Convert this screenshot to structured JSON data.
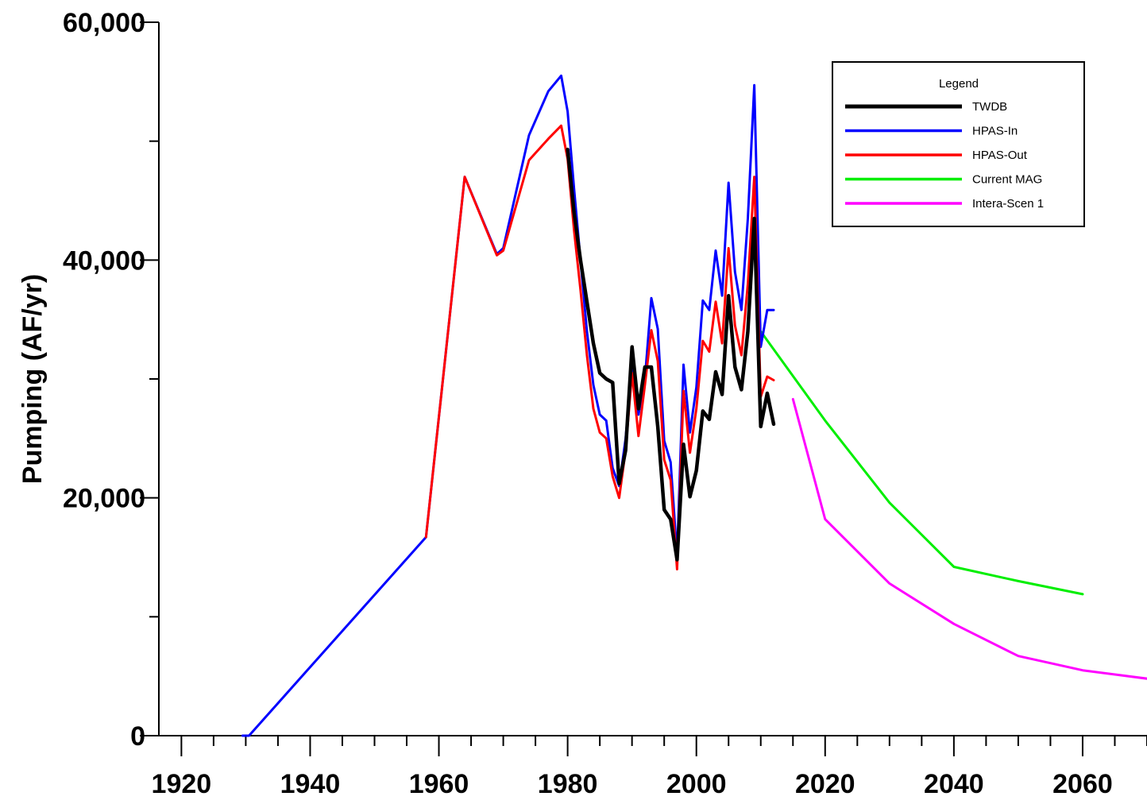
{
  "chart_data": {
    "type": "line",
    "title": "",
    "xlabel": "",
    "ylabel": "Pumping (AF/yr)",
    "xlim": [
      1916.5,
      2070
    ],
    "ylim": [
      0,
      60000
    ],
    "x_ticks": [
      1920,
      1940,
      1960,
      1980,
      2000,
      2020,
      2040,
      2060
    ],
    "x_tick_labels": [
      "1920",
      "1940",
      "1960",
      "1980",
      "2000",
      "2020",
      "2040",
      "2060"
    ],
    "y_ticks": [
      0,
      20000,
      40000,
      60000
    ],
    "y_tick_labels": [
      "0",
      "20,000",
      "40,000",
      "60,000"
    ],
    "y_minor_ticks": [
      10000,
      30000,
      50000
    ],
    "grid": false,
    "legend": {
      "title": "Legend",
      "position": "top-right"
    },
    "series": [
      {
        "name": "TWDB",
        "color": "#000000",
        "width": 4.5,
        "points": [
          [
            1980,
            49300
          ],
          [
            1981,
            44000
          ],
          [
            1982,
            40000
          ],
          [
            1983,
            36500
          ],
          [
            1984,
            33000
          ],
          [
            1985,
            30500
          ],
          [
            1986,
            30000
          ],
          [
            1987,
            29700
          ],
          [
            1988,
            21200
          ],
          [
            1989,
            24000
          ],
          [
            1990,
            32700
          ],
          [
            1991,
            27500
          ],
          [
            1992,
            31000
          ],
          [
            1993,
            31000
          ],
          [
            1994,
            26000
          ],
          [
            1995,
            19000
          ],
          [
            1996,
            18200
          ],
          [
            1997,
            14800
          ],
          [
            1998,
            24500
          ],
          [
            1999,
            20100
          ],
          [
            2000,
            22300
          ],
          [
            2001,
            27300
          ],
          [
            2002,
            26600
          ],
          [
            2003,
            30600
          ],
          [
            2004,
            28700
          ],
          [
            2005,
            37000
          ],
          [
            2006,
            31000
          ],
          [
            2007,
            29100
          ],
          [
            2008,
            34000
          ],
          [
            2009,
            43500
          ],
          [
            2010,
            26000
          ],
          [
            2011,
            28800
          ],
          [
            2012,
            26200
          ]
        ]
      },
      {
        "name": "HPAS-In",
        "color": "#0000ff",
        "width": 3,
        "points": [
          [
            1929.5,
            0
          ],
          [
            1930.5,
            0
          ],
          [
            1958,
            16700
          ],
          [
            1964,
            47000
          ],
          [
            1969,
            40500
          ],
          [
            1970,
            41000
          ],
          [
            1974,
            50500
          ],
          [
            1977,
            54200
          ],
          [
            1979,
            55500
          ],
          [
            1980,
            52500
          ],
          [
            1981,
            46000
          ],
          [
            1982,
            40000
          ],
          [
            1983,
            34000
          ],
          [
            1984,
            29500
          ],
          [
            1985,
            27000
          ],
          [
            1986,
            26500
          ],
          [
            1987,
            22500
          ],
          [
            1988,
            21000
          ],
          [
            1989,
            25000
          ],
          [
            1990,
            31000
          ],
          [
            1991,
            27000
          ],
          [
            1992,
            30000
          ],
          [
            1993,
            36800
          ],
          [
            1994,
            34200
          ],
          [
            1995,
            24800
          ],
          [
            1996,
            23000
          ],
          [
            1997,
            15100
          ],
          [
            1998,
            31200
          ],
          [
            1999,
            25500
          ],
          [
            2000,
            29300
          ],
          [
            2001,
            36600
          ],
          [
            2002,
            35800
          ],
          [
            2003,
            40800
          ],
          [
            2004,
            37000
          ],
          [
            2005,
            46500
          ],
          [
            2006,
            39000
          ],
          [
            2007,
            35800
          ],
          [
            2008,
            43500
          ],
          [
            2009,
            54700
          ],
          [
            2010,
            32700
          ],
          [
            2011,
            35800
          ],
          [
            2012,
            35800
          ]
        ]
      },
      {
        "name": "HPAS-Out",
        "color": "#ff0000",
        "width": 3,
        "points": [
          [
            1958,
            16700
          ],
          [
            1964,
            47000
          ],
          [
            1969,
            40400
          ],
          [
            1970,
            40800
          ],
          [
            1974,
            48400
          ],
          [
            1977,
            50200
          ],
          [
            1979,
            51300
          ],
          [
            1980,
            48500
          ],
          [
            1981,
            42500
          ],
          [
            1982,
            37500
          ],
          [
            1983,
            32000
          ],
          [
            1984,
            27500
          ],
          [
            1985,
            25500
          ],
          [
            1986,
            25000
          ],
          [
            1987,
            21800
          ],
          [
            1988,
            20000
          ],
          [
            1989,
            24000
          ],
          [
            1990,
            30500
          ],
          [
            1991,
            25200
          ],
          [
            1992,
            29500
          ],
          [
            1993,
            34100
          ],
          [
            1994,
            31500
          ],
          [
            1995,
            23200
          ],
          [
            1996,
            21500
          ],
          [
            1997,
            14000
          ],
          [
            1998,
            29000
          ],
          [
            1999,
            23800
          ],
          [
            2000,
            27500
          ],
          [
            2001,
            33200
          ],
          [
            2002,
            32300
          ],
          [
            2003,
            36500
          ],
          [
            2004,
            33000
          ],
          [
            2005,
            41000
          ],
          [
            2006,
            34500
          ],
          [
            2007,
            32000
          ],
          [
            2008,
            38000
          ],
          [
            2009,
            47000
          ],
          [
            2010,
            28500
          ],
          [
            2011,
            30200
          ],
          [
            2012,
            29900
          ]
        ]
      },
      {
        "name": "Current MAG",
        "color": "#00ee00",
        "width": 3,
        "points": [
          [
            2010,
            34000
          ],
          [
            2020,
            26500
          ],
          [
            2030,
            19600
          ],
          [
            2040,
            14200
          ],
          [
            2050,
            13000
          ],
          [
            2060,
            11900
          ]
        ]
      },
      {
        "name": "Intera-Scen 1",
        "color": "#ff00ff",
        "width": 3,
        "points": [
          [
            2015,
            28300
          ],
          [
            2020,
            18200
          ],
          [
            2030,
            12800
          ],
          [
            2040,
            9400
          ],
          [
            2050,
            6700
          ],
          [
            2060,
            5500
          ],
          [
            2070,
            4800
          ]
        ]
      }
    ]
  }
}
